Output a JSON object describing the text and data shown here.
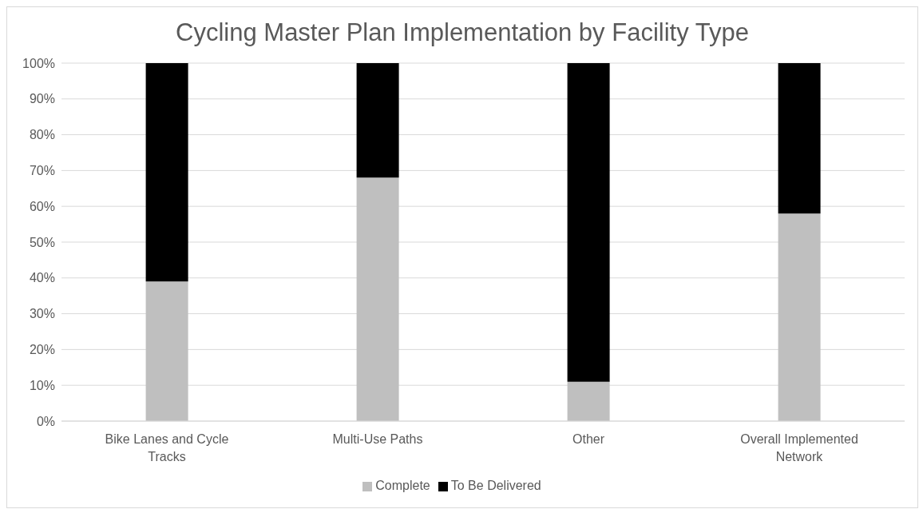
{
  "chart_data": {
    "type": "bar",
    "title": "Cycling Master Plan Implementation by Facility Type",
    "categories": [
      "Bike Lanes and Cycle Tracks",
      "Multi-Use Paths",
      "Other",
      "Overall Implemented Network"
    ],
    "series": [
      {
        "name": "Complete",
        "color": "#bfbfbf",
        "values": [
          39,
          68,
          11,
          58
        ]
      },
      {
        "name": "To Be Delivered",
        "color": "#000000",
        "values": [
          61,
          32,
          89,
          42
        ]
      }
    ],
    "stacked": true,
    "ylim": [
      0,
      100
    ],
    "yticks": [
      {
        "value": 0,
        "label": "0%"
      },
      {
        "value": 10,
        "label": "10%"
      },
      {
        "value": 20,
        "label": "20%"
      },
      {
        "value": 30,
        "label": "30%"
      },
      {
        "value": 40,
        "label": "40%"
      },
      {
        "value": 50,
        "label": "50%"
      },
      {
        "value": 60,
        "label": "60%"
      },
      {
        "value": 70,
        "label": "70%"
      },
      {
        "value": 80,
        "label": "80%"
      },
      {
        "value": 90,
        "label": "90%"
      },
      {
        "value": 100,
        "label": "100%"
      }
    ],
    "grid": "y",
    "legend": "bottom"
  }
}
